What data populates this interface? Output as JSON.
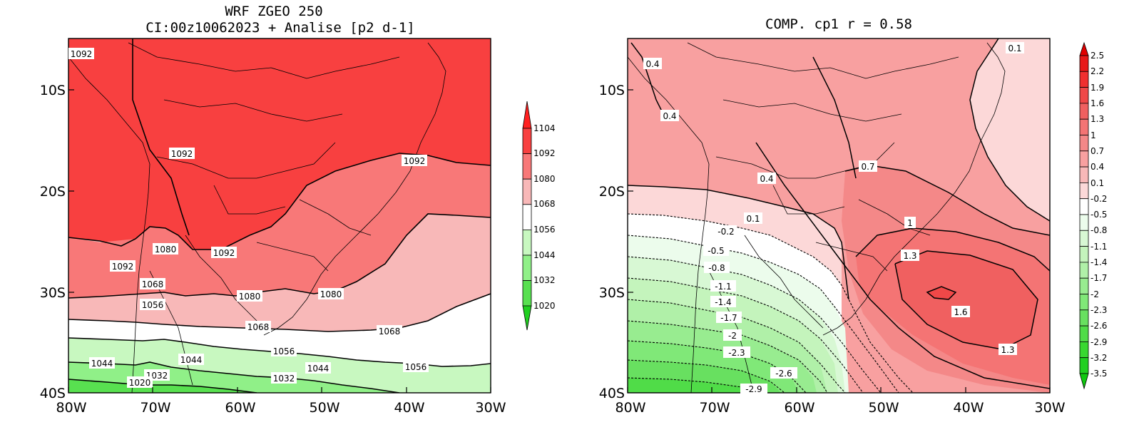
{
  "left_panel": {
    "title_line1": "WRF ZGEO 250",
    "title_line2": "CI:00z10062023 + Analise  [p2 d-1]",
    "x_ticks": [
      "80W",
      "70W",
      "60W",
      "50W",
      "40W",
      "30W"
    ],
    "y_ticks": [
      "10S",
      "20S",
      "30S",
      "40S"
    ],
    "contour_labels": [
      "1092",
      "1092",
      "1092",
      "1092",
      "1092",
      "1080",
      "1080",
      "1080",
      "1068",
      "1068",
      "1068",
      "1056",
      "1056",
      "1056",
      "1044",
      "1044",
      "1044",
      "1032",
      "1032",
      "1020"
    ],
    "colorbar": {
      "labels": [
        "1104",
        "1092",
        "1080",
        "1068",
        "1056",
        "1044",
        "1032",
        "1020"
      ],
      "colors": [
        "#ff2020",
        "#f84040",
        "#f87878",
        "#f8b8b8",
        "#ffffff",
        "#c8f8c0",
        "#90f088",
        "#58e050",
        "#20d020"
      ]
    }
  },
  "right_panel": {
    "title": "COMP. cp1   r =  0.58",
    "x_ticks": [
      "80W",
      "70W",
      "60W",
      "50W",
      "40W",
      "30W"
    ],
    "y_ticks": [
      "10S",
      "20S",
      "30S",
      "40S"
    ],
    "contour_labels": [
      "0.4",
      "0.4",
      "0.4",
      "0.1",
      "0.1",
      "0.7",
      "1",
      "1.3",
      "1.6",
      "1.3",
      "-0.2",
      "-0.5",
      "-0.8",
      "-1.1",
      "-1.4",
      "-1.7",
      "-2",
      "-2.3",
      "-2.6",
      "-2.9"
    ],
    "colorbar": {
      "labels": [
        "2.5",
        "2.2",
        "1.9",
        "1.6",
        "1.3",
        "1",
        "0.7",
        "0.4",
        "0.1",
        "-0.2",
        "-0.5",
        "-0.8",
        "-1.1",
        "-1.4",
        "-1.7",
        "-2",
        "-2.3",
        "-2.6",
        "-2.9",
        "-3.2",
        "-3.5"
      ],
      "colors": [
        "#e00000",
        "#e81818",
        "#f03030",
        "#f04848",
        "#f06060",
        "#f47474",
        "#f48888",
        "#f8a0a0",
        "#f8b8b8",
        "#fcd8d8",
        "#ffffff",
        "#ecfcec",
        "#d8f8d4",
        "#c4f4bc",
        "#b0f0a8",
        "#98ec90",
        "#80e878",
        "#68e060",
        "#50dc48",
        "#38d830",
        "#20d020",
        "#10c810"
      ]
    }
  }
}
